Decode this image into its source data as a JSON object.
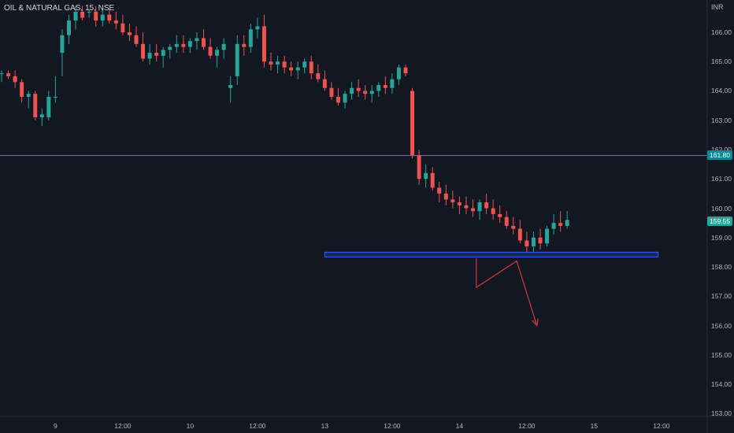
{
  "title": "OIL & NATURAL GAS, 15, NSE",
  "currency": "INR",
  "colors": {
    "background": "#131722",
    "up": "#26a69a",
    "down": "#ef5350",
    "level_line": "#2a8fa0",
    "zone_fill": "#1b2a52",
    "zone_stroke": "#2962ff",
    "arrow": "#c2363c"
  },
  "price_badges": {
    "level": "161.80",
    "last": "159.55"
  },
  "chart_data": {
    "type": "candlestick",
    "interval": "15",
    "ylim": [
      152.9,
      167.1
    ],
    "y_ticks": [
      "166.00",
      "165.00",
      "164.00",
      "163.00",
      "162.00",
      "161.00",
      "160.00",
      "159.00",
      "158.00",
      "157.00",
      "156.00",
      "155.00",
      "154.00",
      "153.00"
    ],
    "x_ticks": [
      "9",
      "12:00",
      "10",
      "12:00",
      "13",
      "12:00",
      "14",
      "12:00",
      "15",
      "12:00"
    ],
    "x_tick_bars": [
      8,
      18,
      28,
      38,
      48,
      58,
      68,
      78,
      88,
      98
    ],
    "horizontal_level": 161.8,
    "zone": {
      "from_bar": 48,
      "to_bar": 97.5,
      "low": 158.35,
      "high": 158.5
    },
    "projection": {
      "bars": [
        70.5,
        70.5,
        76.5,
        79.5
      ],
      "prices": [
        158.3,
        157.3,
        158.2,
        156.0
      ]
    },
    "candles": [
      [
        164.6,
        164.7,
        164.3,
        164.6
      ],
      [
        164.6,
        164.7,
        164.4,
        164.5
      ],
      [
        164.5,
        164.7,
        164.1,
        164.3
      ],
      [
        164.3,
        164.4,
        163.6,
        163.8
      ],
      [
        163.8,
        164.0,
        163.4,
        163.9
      ],
      [
        163.9,
        164.0,
        163.0,
        163.1
      ],
      [
        163.1,
        163.4,
        162.8,
        163.2
      ],
      [
        163.1,
        164.0,
        163.0,
        163.8
      ],
      [
        163.8,
        164.5,
        163.6,
        163.8
      ],
      [
        165.3,
        166.1,
        164.5,
        165.9
      ],
      [
        165.9,
        166.6,
        165.6,
        166.4
      ],
      [
        166.4,
        166.9,
        166.1,
        166.7
      ],
      [
        166.7,
        166.9,
        166.4,
        166.5
      ],
      [
        166.7,
        166.8,
        166.5,
        166.7
      ],
      [
        166.7,
        166.9,
        166.2,
        166.4
      ],
      [
        166.4,
        166.8,
        166.2,
        166.6
      ],
      [
        166.6,
        166.8,
        166.3,
        166.4
      ],
      [
        166.4,
        166.7,
        166.1,
        166.3
      ],
      [
        166.3,
        166.6,
        165.9,
        166.0
      ],
      [
        166.0,
        166.3,
        165.7,
        165.9
      ],
      [
        165.9,
        166.2,
        165.5,
        165.6
      ],
      [
        165.6,
        166.0,
        165.0,
        165.1
      ],
      [
        165.1,
        165.6,
        164.9,
        165.3
      ],
      [
        165.3,
        165.6,
        165.0,
        165.2
      ],
      [
        165.2,
        165.5,
        164.8,
        165.4
      ],
      [
        165.4,
        165.6,
        165.1,
        165.5
      ],
      [
        165.5,
        165.9,
        165.3,
        165.6
      ],
      [
        165.6,
        165.9,
        165.3,
        165.5
      ],
      [
        165.5,
        165.8,
        165.3,
        165.7
      ],
      [
        165.7,
        166.0,
        165.4,
        165.8
      ],
      [
        165.8,
        166.1,
        165.4,
        165.5
      ],
      [
        165.5,
        165.8,
        165.1,
        165.2
      ],
      [
        165.2,
        165.5,
        164.8,
        165.4
      ],
      [
        165.4,
        165.8,
        165.1,
        165.6
      ],
      [
        164.1,
        164.5,
        163.6,
        164.2
      ],
      [
        164.5,
        165.9,
        164.2,
        165.6
      ],
      [
        165.6,
        165.9,
        165.2,
        165.5
      ],
      [
        165.5,
        166.3,
        165.3,
        166.1
      ],
      [
        166.1,
        166.5,
        165.8,
        166.2
      ],
      [
        166.2,
        166.6,
        164.8,
        165.0
      ],
      [
        165.0,
        165.3,
        164.7,
        164.9
      ],
      [
        164.9,
        165.2,
        164.6,
        165.0
      ],
      [
        165.0,
        165.2,
        164.6,
        164.8
      ],
      [
        164.8,
        165.0,
        164.5,
        164.7
      ],
      [
        164.7,
        165.0,
        164.4,
        164.8
      ],
      [
        164.8,
        165.1,
        164.6,
        165.0
      ],
      [
        165.0,
        165.2,
        164.4,
        164.6
      ],
      [
        164.6,
        164.9,
        164.3,
        164.4
      ],
      [
        164.4,
        164.7,
        164.0,
        164.1
      ],
      [
        164.1,
        164.3,
        163.7,
        163.8
      ],
      [
        163.8,
        164.1,
        163.5,
        163.6
      ],
      [
        163.6,
        164.0,
        163.4,
        163.9
      ],
      [
        163.9,
        164.3,
        163.7,
        164.1
      ],
      [
        164.1,
        164.4,
        163.8,
        164.0
      ],
      [
        164.0,
        164.2,
        163.7,
        163.9
      ],
      [
        163.9,
        164.2,
        163.6,
        164.0
      ],
      [
        164.0,
        164.3,
        163.8,
        164.2
      ],
      [
        164.2,
        164.5,
        163.9,
        164.1
      ],
      [
        164.1,
        164.6,
        163.9,
        164.4
      ],
      [
        164.4,
        164.9,
        164.2,
        164.8
      ],
      [
        164.8,
        164.9,
        164.5,
        164.6
      ],
      [
        164.0,
        164.1,
        161.7,
        161.8
      ],
      [
        161.8,
        162.0,
        160.8,
        161.0
      ],
      [
        161.0,
        161.5,
        160.7,
        161.2
      ],
      [
        161.2,
        161.4,
        160.6,
        160.7
      ],
      [
        160.7,
        160.9,
        160.2,
        160.5
      ],
      [
        160.5,
        160.8,
        160.1,
        160.3
      ],
      [
        160.3,
        160.6,
        160.0,
        160.2
      ],
      [
        160.2,
        160.4,
        159.8,
        160.1
      ],
      [
        160.1,
        160.4,
        159.8,
        160.0
      ],
      [
        160.0,
        160.3,
        159.7,
        159.9
      ],
      [
        159.9,
        160.3,
        159.6,
        160.2
      ],
      [
        160.2,
        160.5,
        159.8,
        160.0
      ],
      [
        160.0,
        160.3,
        159.6,
        159.8
      ],
      [
        159.8,
        160.1,
        159.5,
        159.7
      ],
      [
        159.7,
        159.9,
        159.3,
        159.4
      ],
      [
        159.4,
        159.7,
        159.1,
        159.3
      ],
      [
        159.3,
        159.6,
        158.8,
        158.9
      ],
      [
        158.9,
        159.2,
        158.5,
        158.7
      ],
      [
        158.7,
        159.2,
        158.5,
        159.0
      ],
      [
        159.0,
        159.3,
        158.6,
        158.8
      ],
      [
        158.8,
        159.4,
        158.7,
        159.3
      ],
      [
        159.3,
        159.8,
        159.1,
        159.5
      ],
      [
        159.5,
        159.9,
        159.2,
        159.4
      ],
      [
        159.4,
        159.9,
        159.3,
        159.6
      ]
    ]
  }
}
